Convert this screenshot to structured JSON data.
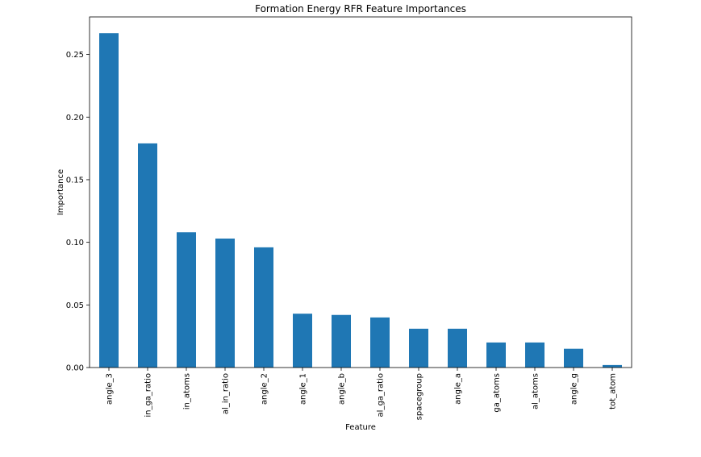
{
  "chart_data": {
    "type": "bar",
    "title": "Formation Energy RFR Feature Importances",
    "xlabel": "Feature",
    "ylabel": "Importance",
    "categories": [
      "angle_3",
      "in_ga_ratio",
      "in_atoms",
      "al_in_ratio",
      "angle_2",
      "angle_1",
      "angle_b",
      "al_ga_ratio",
      "spacegroup",
      "angle_a",
      "ga_atoms",
      "al_atoms",
      "angle_g",
      "tot_atom"
    ],
    "values": [
      0.267,
      0.179,
      0.108,
      0.103,
      0.096,
      0.043,
      0.042,
      0.04,
      0.031,
      0.031,
      0.02,
      0.02,
      0.015,
      0.002
    ],
    "ylim": [
      0,
      0.28
    ],
    "yticks": [
      "0.00",
      "0.05",
      "0.10",
      "0.15",
      "0.20",
      "0.25"
    ],
    "bar_color": "#1f77b4",
    "grid": false,
    "legend": false
  }
}
